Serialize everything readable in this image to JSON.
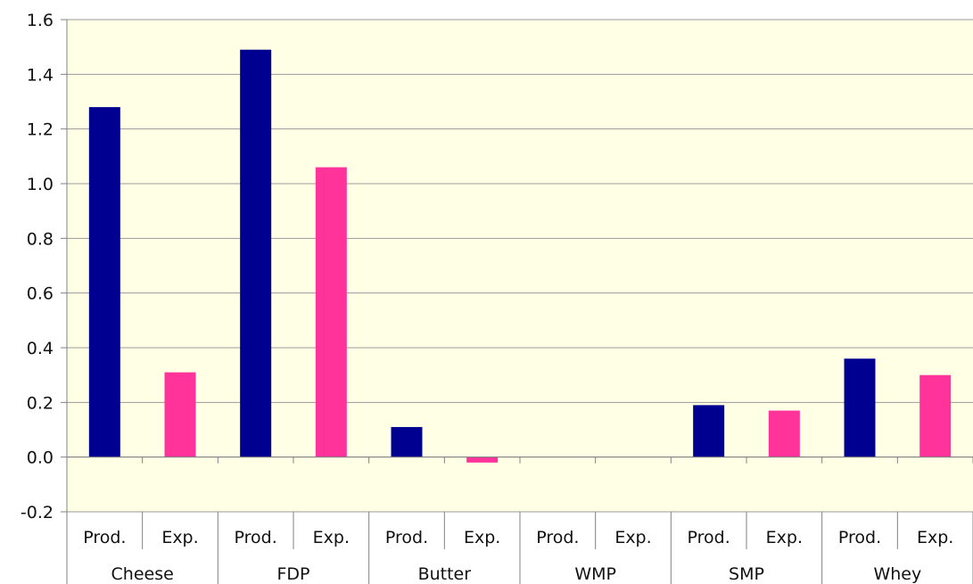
{
  "chart_data": {
    "type": "bar",
    "groups": [
      "Cheese",
      "FDP",
      "Butter",
      "WMP",
      "SMP",
      "Whey"
    ],
    "subcategories": [
      "Prod.",
      "Exp."
    ],
    "categories": [
      "Cheese Prod.",
      "Cheese Exp.",
      "FDP Prod.",
      "FDP Exp.",
      "Butter Prod.",
      "Butter Exp.",
      "WMP Prod.",
      "WMP Exp.",
      "SMP Prod.",
      "SMP Exp.",
      "Whey Prod.",
      "Whey Exp."
    ],
    "values": [
      1.28,
      0.31,
      1.49,
      1.06,
      0.11,
      -0.02,
      0.0,
      0.0,
      0.19,
      0.17,
      0.36,
      0.3
    ],
    "bar_colors": [
      "#000090",
      "#ff3399"
    ],
    "plot_background": "#ffffe6",
    "ylim": [
      -0.2,
      1.6
    ],
    "yticks": [
      -0.2,
      0.0,
      0.2,
      0.4,
      0.6,
      0.8,
      1.0,
      1.2,
      1.4,
      1.6
    ],
    "ytick_labels": [
      "-0.2",
      "0.0",
      "0.2",
      "0.4",
      "0.6",
      "0.8",
      "1.0",
      "1.2",
      "1.4",
      "1.6"
    ],
    "grid": true,
    "title": "",
    "xlabel": "",
    "ylabel": ""
  }
}
